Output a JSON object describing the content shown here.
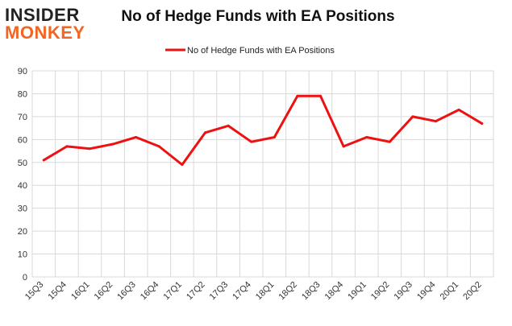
{
  "logo": {
    "line1": "INSIDER",
    "line2": "MONKEY"
  },
  "title": "No of Hedge Funds with EA Positions",
  "chart_data": {
    "type": "line",
    "title": "No of Hedge Funds with EA Positions",
    "xlabel": "",
    "ylabel": "",
    "categories": [
      "15Q3",
      "15Q4",
      "16Q1",
      "16Q2",
      "16Q3",
      "16Q4",
      "17Q1",
      "17Q2",
      "17Q3",
      "17Q4",
      "18Q1",
      "18Q2",
      "18Q3",
      "18Q4",
      "19Q1",
      "19Q2",
      "19Q3",
      "19Q4",
      "20Q1",
      "20Q2"
    ],
    "series": [
      {
        "name": "No of Hedge Funds with EA Positions",
        "values": [
          51,
          57,
          56,
          58,
          61,
          57,
          49,
          63,
          66,
          59,
          61,
          79,
          79,
          57,
          61,
          59,
          70,
          68,
          73,
          67
        ],
        "color": "#ee1111"
      }
    ],
    "ylim": [
      0,
      90
    ],
    "yticks": [
      0,
      10,
      20,
      30,
      40,
      50,
      60,
      70,
      80,
      90
    ],
    "grid": true,
    "legend": "top-center"
  }
}
